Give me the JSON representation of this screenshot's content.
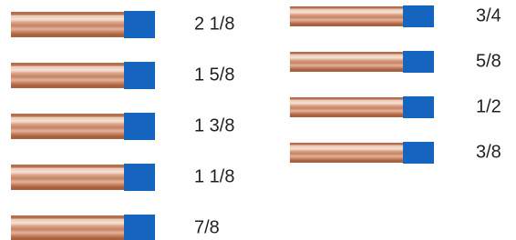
{
  "sizes": {
    "left": [
      "2 1/8",
      "1 5/8",
      "1 3/8",
      "1 1/8",
      "7/8"
    ],
    "right": [
      "3/4",
      "5/8",
      "1/2",
      "3/8"
    ]
  }
}
